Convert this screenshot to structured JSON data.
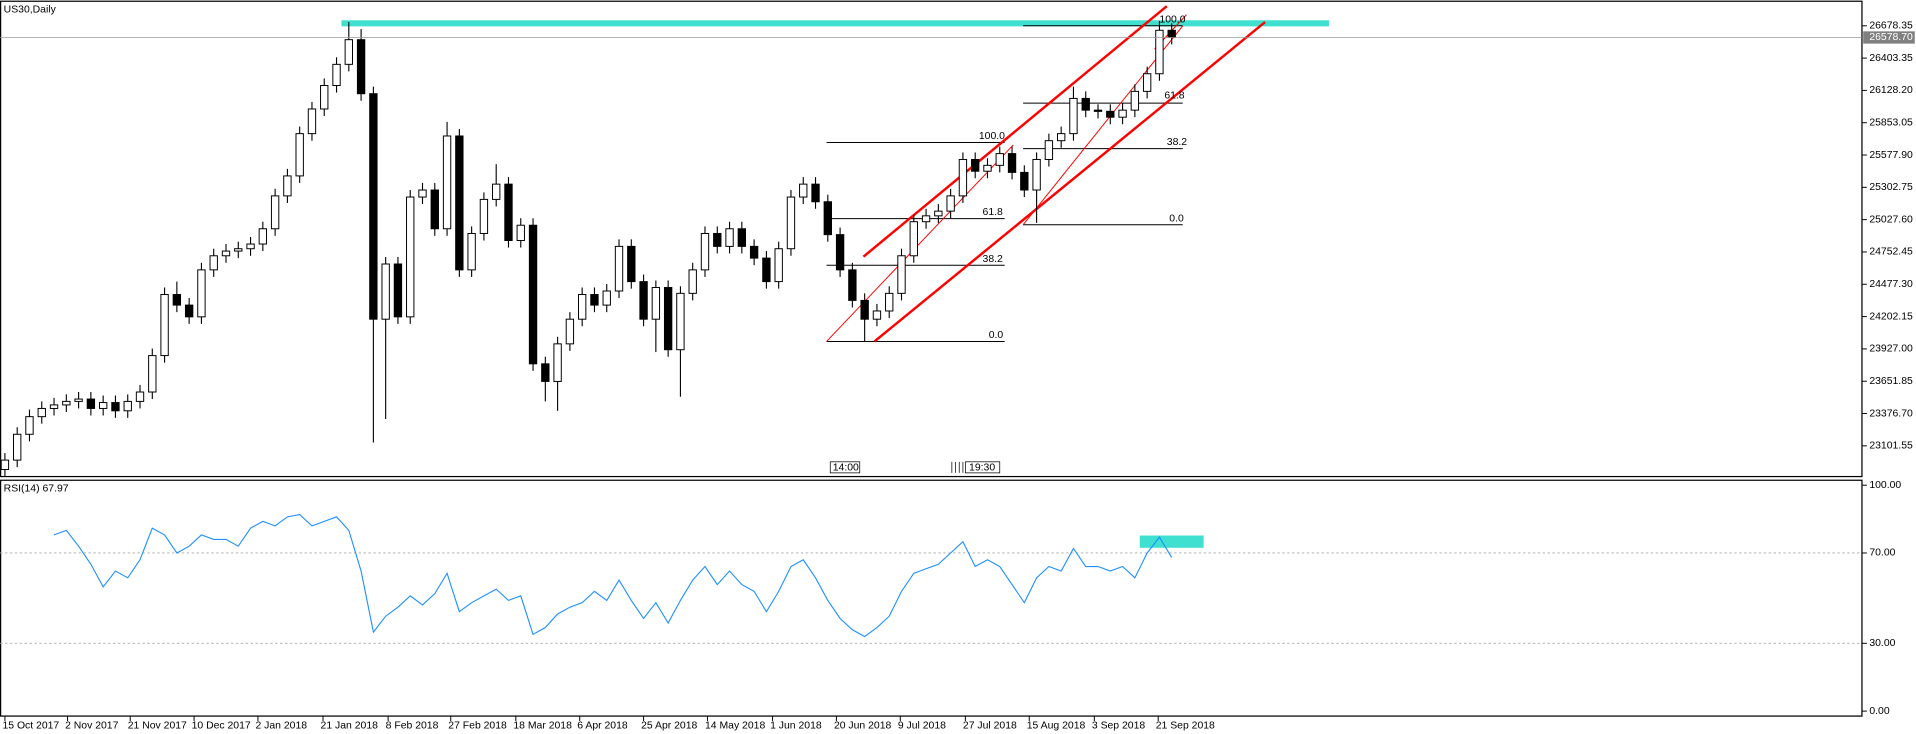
{
  "chart_data": [
    {
      "type": "candlestick",
      "title": "US30,Daily",
      "xlim": [
        -0.4,
        151.2
      ],
      "ylim": [
        22840,
        26877
      ],
      "yticks": [
        23101.55,
        {
          "value": 23376.7,
          "label": "23376.70"
        },
        {
          "value": 23651.85,
          "label": "23651.85"
        },
        {
          "value": 23927,
          "label": "23927.00"
        },
        24202.15,
        {
          "value": 24477.3,
          "label": "24477.30"
        },
        24752.45,
        {
          "value": 25027.6,
          "label": "25027.60"
        },
        25302.75,
        {
          "value": 25577.9,
          "label": "25577.90"
        },
        25853.05,
        {
          "value": 26128.2,
          "label": "26128.20"
        },
        26403.35,
        26678.35
      ],
      "last_price": {
        "value": 26578.7,
        "label": "26578.70"
      },
      "bull_color": "#ffffff",
      "bear_color": "#000000",
      "wick_color": "#000000",
      "open": [
        22900,
        22980,
        23200,
        23350,
        23420,
        23450,
        23480,
        23500,
        23420,
        23470,
        23400,
        23480,
        23560,
        23870,
        24390,
        24300,
        24200,
        24600,
        24720,
        24760,
        24780,
        24820,
        24950,
        25230,
        25400,
        25760,
        25970,
        26170,
        26350,
        26560,
        26100,
        24180,
        24650,
        24200,
        25220,
        25280,
        24950,
        25740,
        24600,
        24910,
        25200,
        25330,
        24850,
        24980,
        23800,
        23650,
        23970,
        24180,
        24390,
        24300,
        24420,
        24800,
        24500,
        24180,
        24450,
        23920,
        24400,
        24600,
        24910,
        24800,
        24950,
        24800,
        24700,
        24500,
        24780,
        25220,
        25330,
        25180,
        24900,
        24600,
        24340,
        24180,
        24250,
        24400,
        24720,
        25010,
        25060,
        25100,
        25230,
        25540,
        25440,
        25490,
        25590,
        25430,
        25280,
        25540,
        25700,
        25760,
        26060,
        25960,
        25950,
        25900,
        25960,
        26120,
        26270,
        26640
      ],
      "high": [
        23040,
        23260,
        23410,
        23480,
        23510,
        23540,
        23560,
        23560,
        23530,
        23530,
        23540,
        23620,
        23930,
        24450,
        24500,
        24360,
        24660,
        24780,
        24820,
        24840,
        24880,
        25010,
        25290,
        25460,
        25820,
        26030,
        26230,
        26410,
        26710,
        26650,
        26160,
        24710,
        24710,
        25280,
        25340,
        25340,
        25860,
        25800,
        24970,
        25260,
        25500,
        25390,
        25040,
        25040,
        23860,
        24030,
        24240,
        24450,
        24450,
        24480,
        24860,
        24860,
        24560,
        24510,
        24510,
        24460,
        24660,
        24970,
        24970,
        25010,
        25010,
        24860,
        24760,
        24840,
        25280,
        25390,
        25390,
        25240,
        24960,
        24660,
        24400,
        24310,
        24460,
        24780,
        25070,
        25120,
        25160,
        25290,
        25600,
        25600,
        25550,
        25650,
        25650,
        25490,
        25600,
        25760,
        25820,
        26160,
        26120,
        26010,
        26010,
        26020,
        26180,
        26330,
        26720,
        26700
      ],
      "low": [
        22840,
        22920,
        23140,
        23290,
        23360,
        23390,
        23420,
        23360,
        23360,
        23340,
        23340,
        23420,
        23500,
        23810,
        24240,
        24140,
        24140,
        24540,
        24660,
        24700,
        24720,
        24760,
        24890,
        25170,
        25340,
        25700,
        25910,
        26110,
        26290,
        26040,
        23130,
        23330,
        24140,
        24140,
        25160,
        24890,
        24890,
        24540,
        24540,
        24850,
        25140,
        24790,
        24790,
        23740,
        23480,
        23400,
        23910,
        24120,
        24240,
        24240,
        24360,
        24440,
        24120,
        23900,
        23860,
        23520,
        24340,
        24540,
        24740,
        24740,
        24740,
        24640,
        24440,
        24440,
        24720,
        25160,
        25120,
        24840,
        24540,
        24280,
        23990,
        24120,
        24190,
        24340,
        24660,
        24950,
        25000,
        25040,
        25170,
        25380,
        25380,
        25430,
        25370,
        25220,
        25000,
        25480,
        25640,
        25700,
        25900,
        25890,
        25840,
        25840,
        25900,
        26060,
        26210,
        26520
      ],
      "close": [
        22980,
        23200,
        23350,
        23420,
        23450,
        23480,
        23500,
        23420,
        23470,
        23400,
        23480,
        23560,
        23870,
        24390,
        24300,
        24200,
        24600,
        24720,
        24760,
        24780,
        24820,
        24950,
        25230,
        25400,
        25760,
        25970,
        26170,
        26350,
        26560,
        26100,
        24180,
        24650,
        24200,
        25220,
        25280,
        24950,
        25740,
        24600,
        24910,
        25200,
        25330,
        24850,
        24980,
        23800,
        23650,
        23970,
        24180,
        24390,
        24300,
        24420,
        24800,
        24500,
        24180,
        24450,
        23920,
        24400,
        24600,
        24910,
        24800,
        24950,
        24800,
        24700,
        24500,
        24780,
        25220,
        25330,
        25180,
        24900,
        24600,
        24340,
        24180,
        24250,
        24400,
        24720,
        25010,
        25060,
        25100,
        25230,
        25540,
        25440,
        25490,
        25590,
        25430,
        25280,
        25540,
        25700,
        25760,
        26060,
        25960,
        25950,
        25900,
        25960,
        26120,
        26270,
        26640,
        26580
      ],
      "drawings": {
        "fib_1": [
          "100.0",
          "61.8",
          "38.2",
          "0.0"
        ],
        "fib_2": [
          "100.0",
          "61.8",
          "38.2",
          "0.0"
        ],
        "events": [
          "14:00",
          "19:30"
        ]
      }
    },
    {
      "type": "line",
      "title": "RSI(14) 67.97",
      "color": "#1e90ff",
      "xlim": [
        -0.4,
        151.2
      ],
      "ylim": [
        -2.2,
        102.2
      ],
      "yticks": [
        {
          "value": 100,
          "label": "100.00"
        },
        {
          "value": 70,
          "label": "70.00"
        },
        {
          "value": 30,
          "label": "30.00"
        },
        {
          "value": 0,
          "label": "0.00"
        }
      ],
      "xticks": [
        {
          "value": 0,
          "label": "15 Oct 2017"
        },
        {
          "value": 5.1,
          "label": "2 Nov 2017"
        },
        {
          "value": 10.2,
          "label": "21 Nov 2017"
        },
        {
          "value": 15.4,
          "label": "10 Dec 2017"
        },
        {
          "value": 20.6,
          "label": "2 Jan 2018"
        },
        {
          "value": 25.9,
          "label": "21 Jan 2018"
        },
        {
          "value": 31.2,
          "label": "8 Feb 2018"
        },
        {
          "value": 36.3,
          "label": "27 Feb 2018"
        },
        {
          "value": 41.6,
          "label": "18 Mar 2018"
        },
        {
          "value": 46.8,
          "label": "6 Apr 2018"
        },
        {
          "value": 52,
          "label": "25 Apr 2018"
        },
        {
          "value": 57.2,
          "label": "14 May 2018"
        },
        {
          "value": 62.5,
          "label": "1 Jun 2018"
        },
        {
          "value": 67.7,
          "label": "20 Jun 2018"
        },
        {
          "value": 72.9,
          "label": "9 Jul 2018"
        },
        {
          "value": 78.2,
          "label": "27 Jul 2018"
        },
        {
          "value": 83.4,
          "label": "15 Aug 2018"
        },
        {
          "value": 88.7,
          "label": "3 Sep 2018"
        },
        {
          "value": 93.9,
          "label": "21 Sep 2018"
        }
      ],
      "values": [
        null,
        null,
        null,
        null,
        78,
        80,
        73,
        65,
        55,
        62,
        59,
        67,
        81,
        78,
        70,
        73,
        78,
        76,
        76,
        73,
        81,
        84,
        82,
        86,
        87,
        82,
        84,
        86,
        80,
        62,
        35,
        42,
        46,
        51,
        47,
        52,
        61,
        44,
        48,
        51,
        54,
        49,
        51,
        34,
        37,
        43,
        46,
        48,
        53,
        49,
        58,
        49,
        41,
        48,
        39,
        49,
        58,
        64,
        56,
        62,
        56,
        53,
        44,
        53,
        64,
        67,
        59,
        49,
        41,
        36,
        33,
        37,
        42,
        53,
        61,
        63,
        65,
        70,
        75,
        64,
        67,
        64,
        56,
        48,
        59,
        64,
        62,
        72,
        64,
        64,
        62,
        64,
        59,
        70,
        77,
        67.97
      ]
    }
  ]
}
